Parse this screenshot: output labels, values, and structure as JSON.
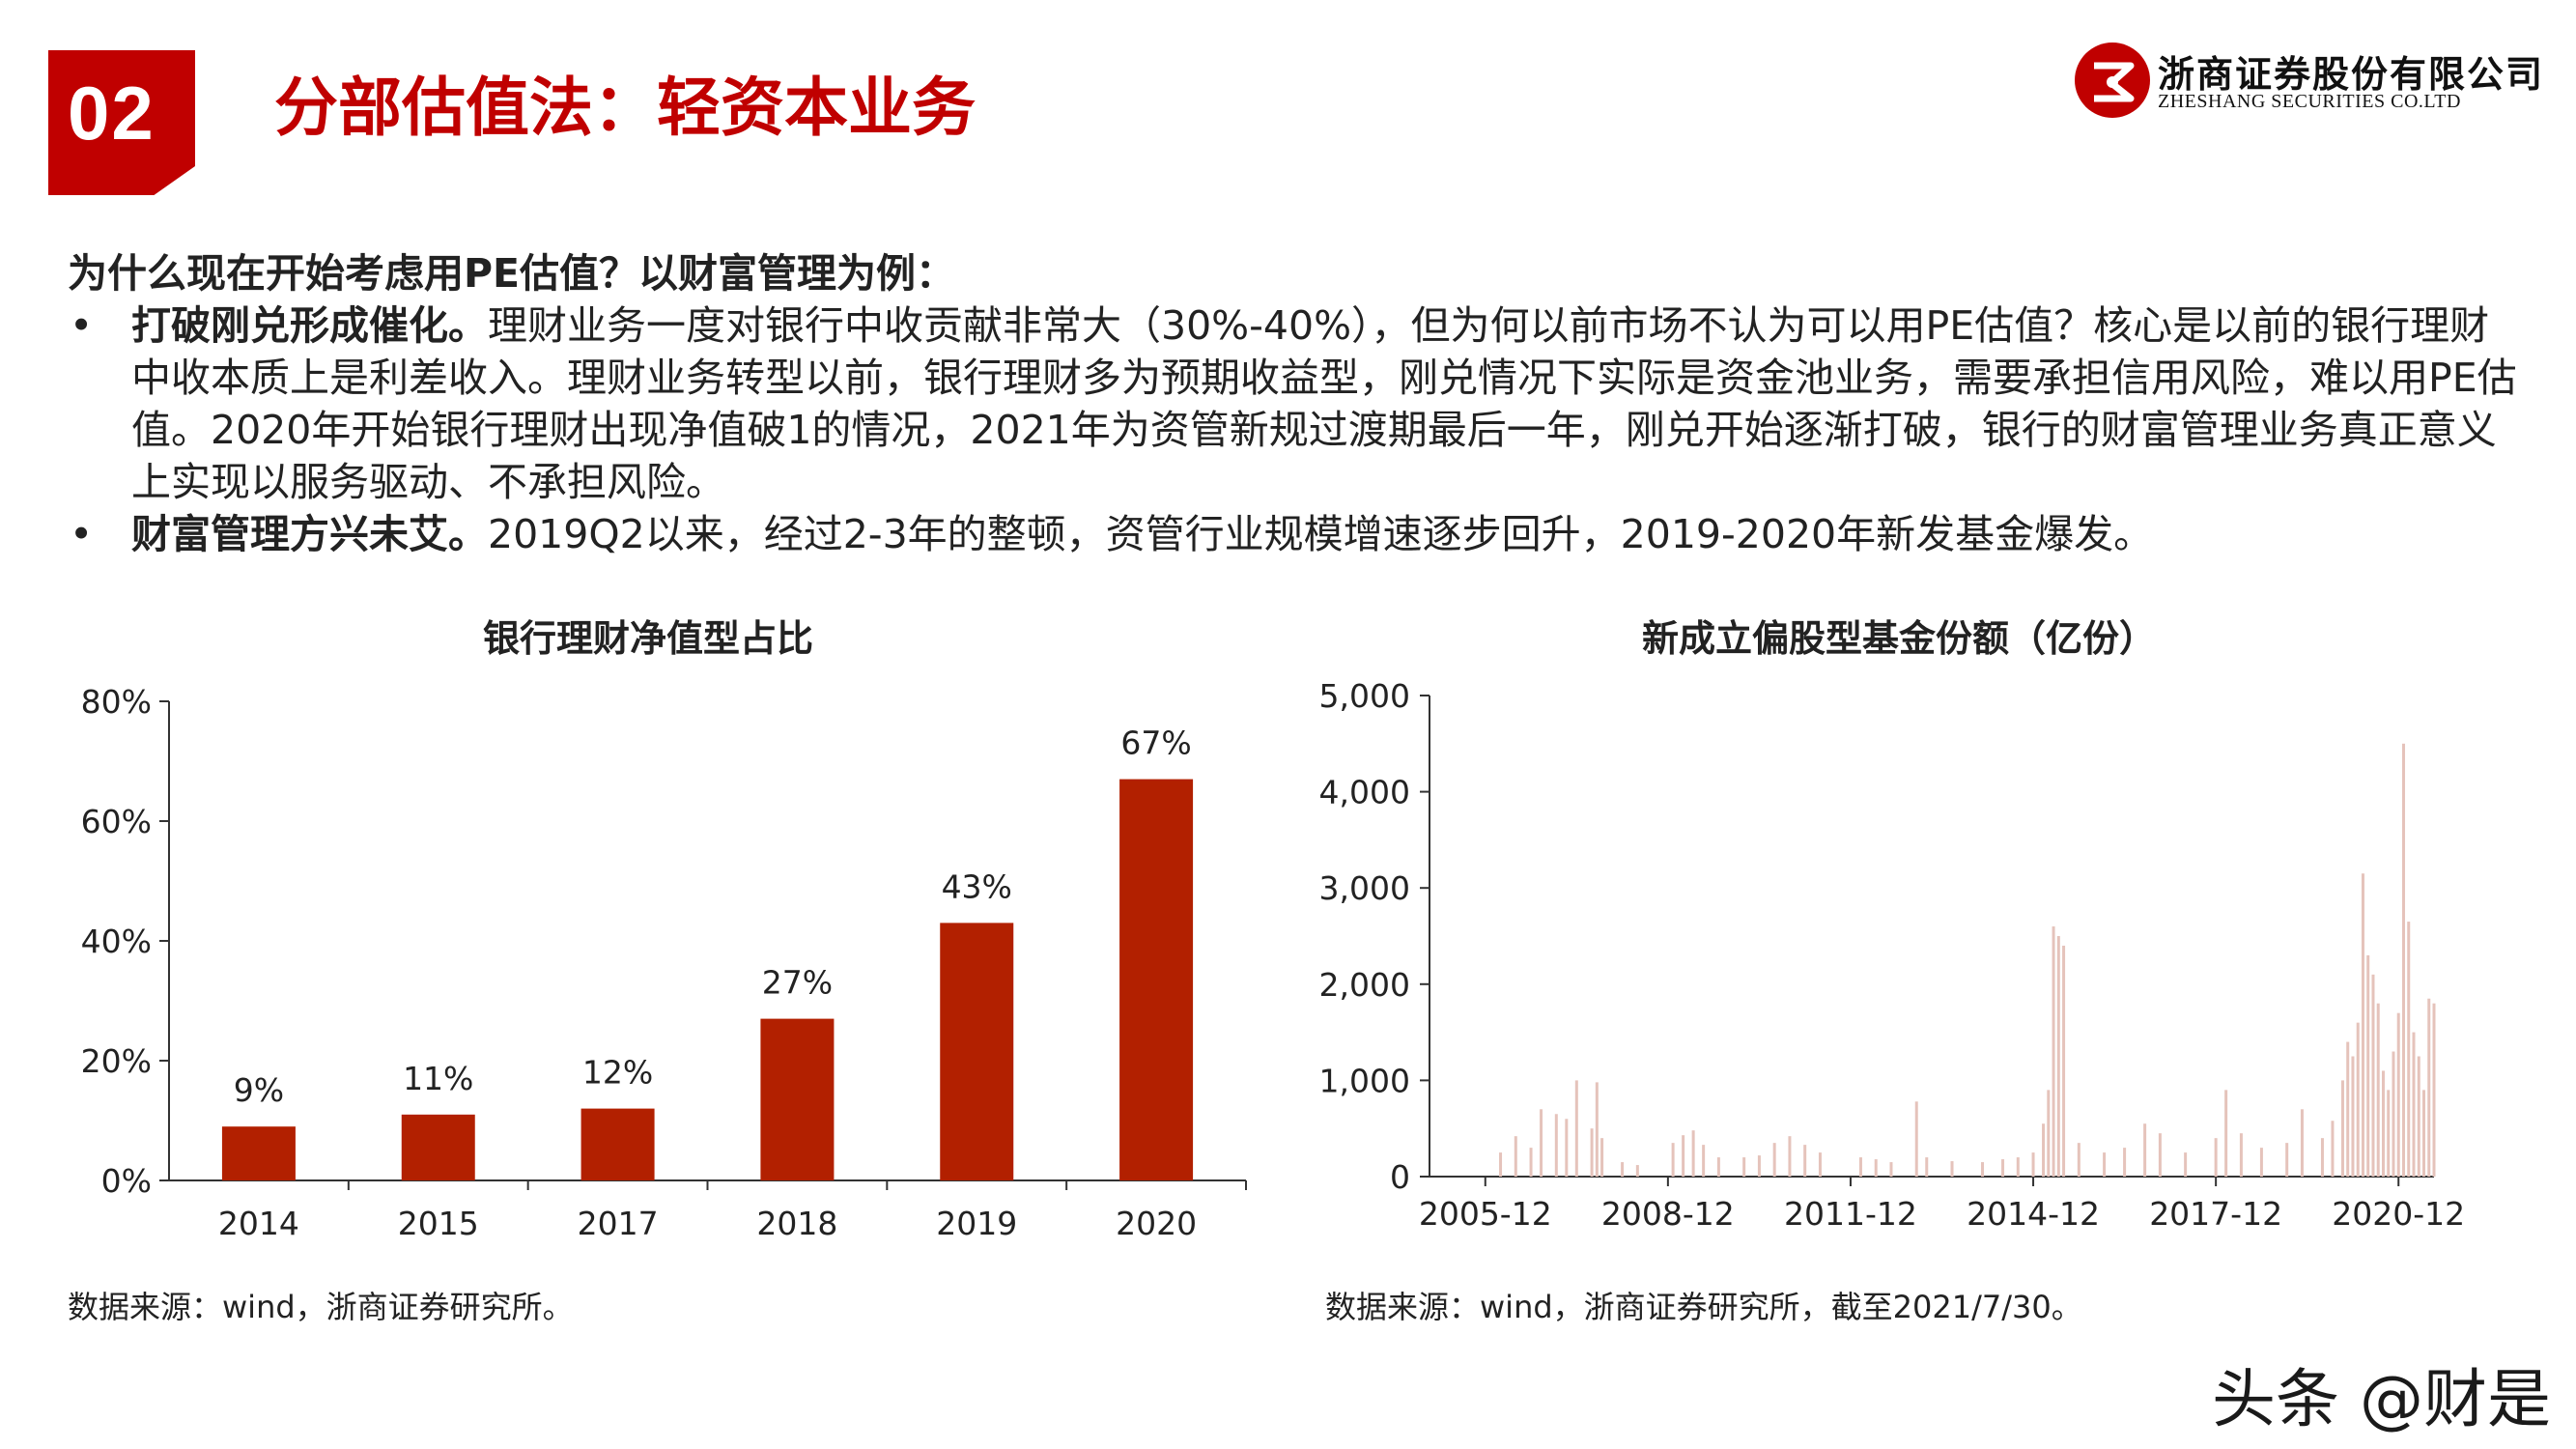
{
  "header": {
    "section_number": "02",
    "title": "分部估值法：轻资本业务",
    "brand_cn": "浙商证券股份有限公司",
    "brand_en": "ZHESHANG SECURITIES CO.LTD",
    "brand_color": "#c00000"
  },
  "content": {
    "heading": "为什么现在开始考虑用PE估值？以财富管理为例：",
    "bullets": [
      {
        "bold": "打破刚兑形成催化。",
        "text": "理财业务一度对银行中收贡献非常大（30%-40%），但为何以前市场不认为可以用PE估值？核心是以前的银行理财中收本质上是利差收入。理财业务转型以前，银行理财多为预期收益型，刚兑情况下实际是资金池业务，需要承担信用风险，难以用PE估值。2020年开始银行理财出现净值破1的情况，2021年为资管新规过渡期最后一年，刚兑开始逐渐打破，银行的财富管理业务真正意义上实现以服务驱动、不承担风险。"
      },
      {
        "bold": "财富管理方兴未艾。",
        "text": "2019Q2以来，经过2-3年的整顿，资管行业规模增速逐步回升，2019-2020年新发基金爆发。"
      }
    ]
  },
  "chart_left": {
    "title": "银行理财净值型占比",
    "source": "数据来源：wind，浙商证券研究所。"
  },
  "chart_right": {
    "title": "新成立偏股型基金份额（亿份）",
    "source": "数据来源：wind，浙商证券研究所，截至2021/7/30。"
  },
  "watermark": "头条 @财是",
  "chart_data": [
    {
      "type": "bar",
      "title": "银行理财净值型占比",
      "categories": [
        "2014",
        "2015",
        "2017",
        "2018",
        "2019",
        "2020"
      ],
      "values": [
        9,
        11,
        12,
        27,
        43,
        67
      ],
      "data_labels": [
        "9%",
        "11%",
        "12%",
        "27%",
        "43%",
        "67%"
      ],
      "ylim": [
        0,
        80
      ],
      "yticks": [
        "0%",
        "20%",
        "40%",
        "60%",
        "80%"
      ],
      "bar_color": "#b22000",
      "grid": false,
      "legend": "none"
    },
    {
      "type": "bar",
      "title": "新成立偏股型基金份额（亿份）",
      "x_range": [
        "2005-01",
        "2021-07"
      ],
      "xticks": [
        "2005-12",
        "2008-12",
        "2011-12",
        "2014-12",
        "2017-12",
        "2020-12"
      ],
      "ylim": [
        0,
        5000
      ],
      "yticks": [
        "0",
        "1,000",
        "2,000",
        "3,000",
        "4,000",
        "5,000"
      ],
      "bar_color": "#e5c3bb",
      "grid": false,
      "legend": "none",
      "points": [
        [
          "2006-03",
          250
        ],
        [
          "2006-06",
          420
        ],
        [
          "2006-09",
          300
        ],
        [
          "2006-11",
          700
        ],
        [
          "2007-02",
          650
        ],
        [
          "2007-04",
          600
        ],
        [
          "2007-06",
          1000
        ],
        [
          "2007-09",
          500
        ],
        [
          "2007-10",
          980
        ],
        [
          "2007-11",
          400
        ],
        [
          "2008-03",
          150
        ],
        [
          "2008-06",
          120
        ],
        [
          "2009-01",
          350
        ],
        [
          "2009-03",
          430
        ],
        [
          "2009-05",
          480
        ],
        [
          "2009-07",
          330
        ],
        [
          "2009-10",
          200
        ],
        [
          "2010-03",
          200
        ],
        [
          "2010-06",
          220
        ],
        [
          "2010-09",
          350
        ],
        [
          "2010-12",
          420
        ],
        [
          "2011-03",
          330
        ],
        [
          "2011-06",
          250
        ],
        [
          "2012-02",
          200
        ],
        [
          "2012-05",
          180
        ],
        [
          "2012-08",
          150
        ],
        [
          "2013-01",
          780
        ],
        [
          "2013-03",
          200
        ],
        [
          "2013-08",
          160
        ],
        [
          "2014-02",
          150
        ],
        [
          "2014-06",
          180
        ],
        [
          "2014-09",
          200
        ],
        [
          "2014-12",
          250
        ],
        [
          "2015-02",
          550
        ],
        [
          "2015-03",
          900
        ],
        [
          "2015-04",
          2600
        ],
        [
          "2015-05",
          2500
        ],
        [
          "2015-06",
          2400
        ],
        [
          "2015-09",
          350
        ],
        [
          "2016-02",
          250
        ],
        [
          "2016-06",
          300
        ],
        [
          "2016-10",
          550
        ],
        [
          "2017-01",
          450
        ],
        [
          "2017-06",
          250
        ],
        [
          "2017-12",
          400
        ],
        [
          "2018-02",
          900
        ],
        [
          "2018-05",
          450
        ],
        [
          "2018-09",
          300
        ],
        [
          "2019-02",
          350
        ],
        [
          "2019-05",
          700
        ],
        [
          "2019-09",
          400
        ],
        [
          "2019-11",
          580
        ],
        [
          "2020-01",
          1000
        ],
        [
          "2020-02",
          1400
        ],
        [
          "2020-03",
          1250
        ],
        [
          "2020-04",
          1600
        ],
        [
          "2020-05",
          3150
        ],
        [
          "2020-06",
          2300
        ],
        [
          "2020-07",
          2100
        ],
        [
          "2020-08",
          1800
        ],
        [
          "2020-09",
          1100
        ],
        [
          "2020-10",
          900
        ],
        [
          "2020-11",
          1300
        ],
        [
          "2020-12",
          1700
        ],
        [
          "2021-01",
          4500
        ],
        [
          "2021-02",
          2650
        ],
        [
          "2021-03",
          1500
        ],
        [
          "2021-04",
          1250
        ],
        [
          "2021-05",
          900
        ],
        [
          "2021-06",
          1850
        ],
        [
          "2021-07",
          1800
        ]
      ]
    }
  ]
}
